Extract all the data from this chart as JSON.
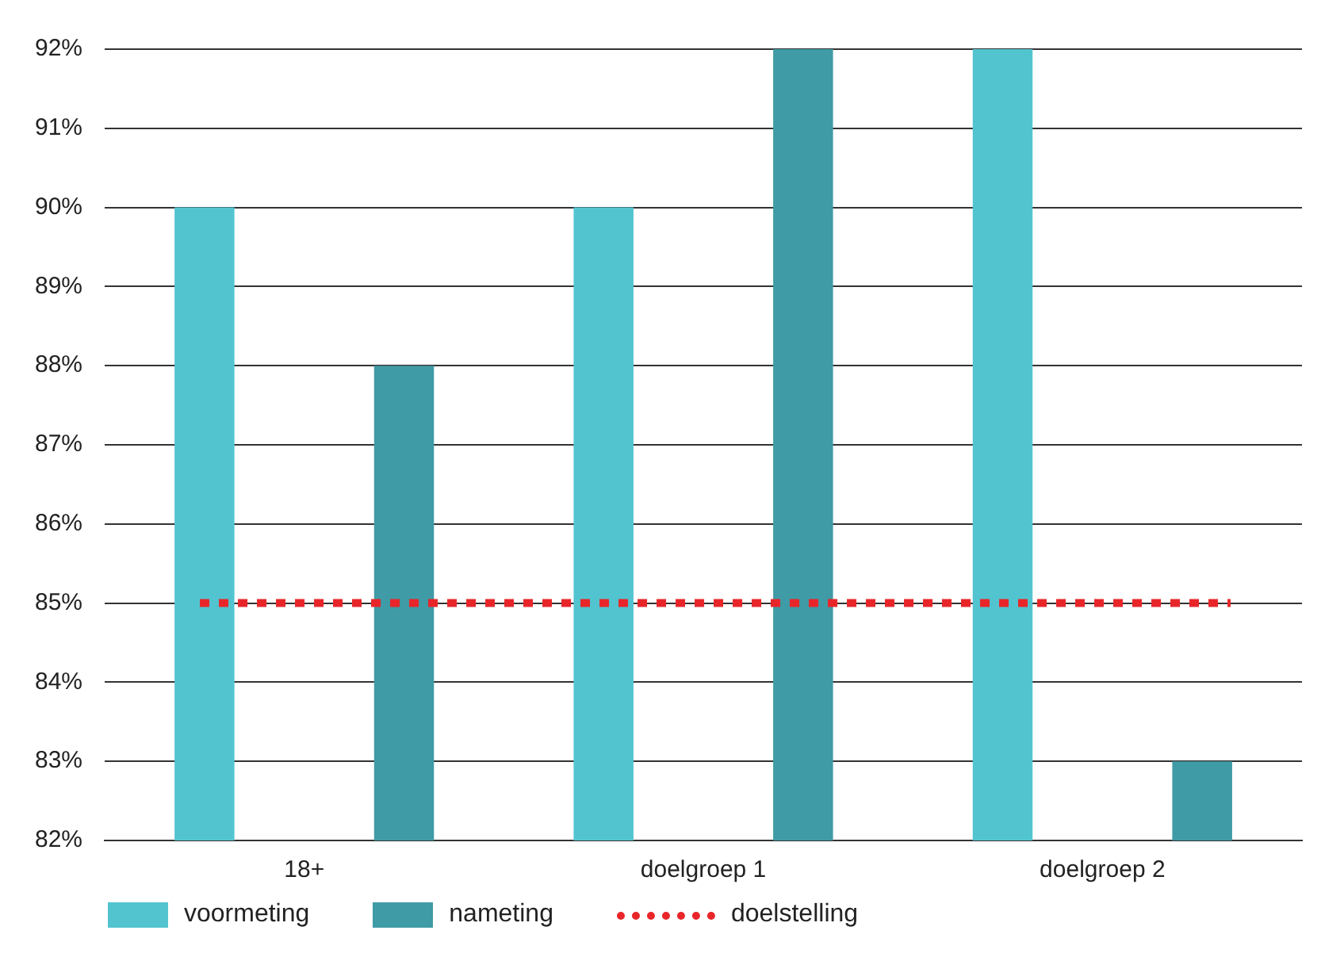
{
  "chart_data": {
    "type": "bar",
    "categories": [
      "18+",
      "doelgroep 1",
      "doelgroep 2"
    ],
    "series": [
      {
        "name": "voormeting",
        "color": "#52c4d0",
        "values": [
          90,
          90,
          92
        ]
      },
      {
        "name": "nameting",
        "color": "#3f9ba6",
        "values": [
          88,
          92,
          83
        ]
      }
    ],
    "ylim": [
      82,
      92
    ],
    "yticks": [
      {
        "value": 82,
        "label": "82%"
      },
      {
        "value": 83,
        "label": "83%"
      },
      {
        "value": 84,
        "label": "84%"
      },
      {
        "value": 85,
        "label": "85%"
      },
      {
        "value": 86,
        "label": "86%"
      },
      {
        "value": 87,
        "label": "87%"
      },
      {
        "value": 88,
        "label": "88%"
      },
      {
        "value": 89,
        "label": "89%"
      },
      {
        "value": 90,
        "label": "90%"
      },
      {
        "value": 91,
        "label": "91%"
      },
      {
        "value": 92,
        "label": "92%"
      }
    ],
    "ref_lines": [
      {
        "axis": "y",
        "value": 85,
        "label": "doelstelling",
        "color": "#e8262a",
        "line_style": "dotted"
      }
    ],
    "grid": "y",
    "legend": "bottom left"
  }
}
